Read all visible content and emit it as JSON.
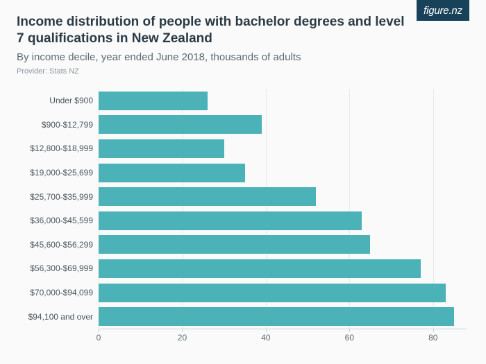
{
  "logo_text": "figure.nz",
  "title": "Income distribution of people with bachelor degrees and level 7 qualifications in New Zealand",
  "subtitle": "By income decile, year ended June 2018, thousands of adults",
  "provider": "Provider: Stats NZ",
  "chart": {
    "type": "bar-horizontal",
    "bar_color": "#4bb3b8",
    "grid_color": "#e4e9eb",
    "axis_color": "#c9d1d5",
    "background_color": "#fafafa",
    "label_color": "#4a555c",
    "label_fontsize": 12,
    "xlim": [
      0,
      88
    ],
    "xticks": [
      0,
      20,
      40,
      60,
      80
    ],
    "bar_gap_ratio": 0.22,
    "rows": [
      {
        "label": "Under $900",
        "value": 26
      },
      {
        "label": "$900-$12,799",
        "value": 39
      },
      {
        "label": "$12,800-$18,999",
        "value": 30
      },
      {
        "label": "$19,000-$25,699",
        "value": 35
      },
      {
        "label": "$25,700-$35,999",
        "value": 52
      },
      {
        "label": "$36,000-$45,599",
        "value": 63
      },
      {
        "label": "$45,600-$56,299",
        "value": 65
      },
      {
        "label": "$56,300-$69,999",
        "value": 77
      },
      {
        "label": "$70,000-$94,099",
        "value": 83
      },
      {
        "label": "$94,100 and over",
        "value": 85
      }
    ]
  }
}
